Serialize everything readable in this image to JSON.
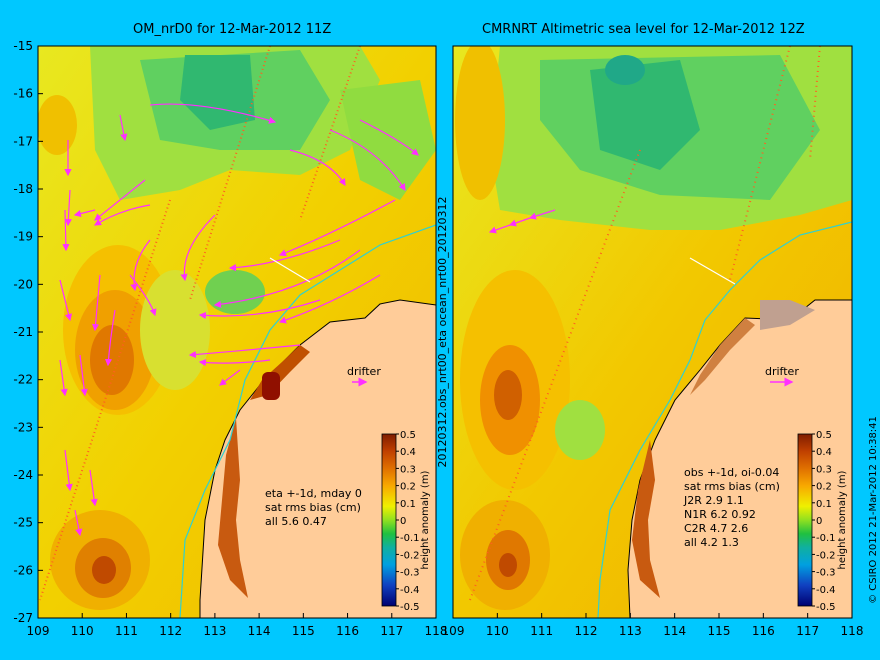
{
  "left_panel": {
    "title": "OM_nrD0 for 12-Mar-2012 11Z",
    "drifter_label": "drifter",
    "stats_lines": [
      "eta +-1d, mday 0",
      "sat rms bias (cm)",
      "all 5.6 0.47"
    ]
  },
  "right_panel": {
    "title": "CMRNRT Altimetric sea level  for 12-Mar-2012 12Z",
    "drifter_label": "drifter",
    "stats_lines": [
      "obs +-1d, oi-0.04",
      "sat rms bias (cm)",
      "J2R   2.9  1.1",
      "N1R   6.2  0.92",
      "C2R   4.7  2.6",
      "all 4.2  1.3"
    ]
  },
  "side_label": "20120312.obs_nrt00_eta ocean_nrt00_20120312",
  "copyright": "© CSIRO 2012  21-Mar-2012 10:38:41",
  "axes": {
    "x_ticks": [
      "109",
      "110",
      "111",
      "112",
      "113",
      "114",
      "115",
      "116",
      "117",
      "118"
    ],
    "y_ticks": [
      "-15",
      "-16",
      "-17",
      "-18",
      "-19",
      "-20",
      "-21",
      "-22",
      "-23",
      "-24",
      "-25",
      "-26",
      "-27"
    ]
  },
  "colorbar": {
    "label": "height anomaly (m)",
    "ticks": [
      "0.5",
      "0.4",
      "0.3",
      "0.2",
      "0.1",
      "0",
      "-0.1",
      "-0.2",
      "-0.3",
      "-0.4",
      "-0.5"
    ],
    "colors": [
      "#7f1d00",
      "#b03000",
      "#d85a00",
      "#f08c00",
      "#ffc000",
      "#f0f000",
      "#a0e020",
      "#30c040",
      "#20b090",
      "#00a0d0",
      "#2060e0",
      "#1020a0",
      "#000060"
    ]
  },
  "colors": {
    "background": "#00c8ff",
    "land": "#ffcc99",
    "vector": "#ff30ff",
    "isobath": "#30d0d0"
  }
}
